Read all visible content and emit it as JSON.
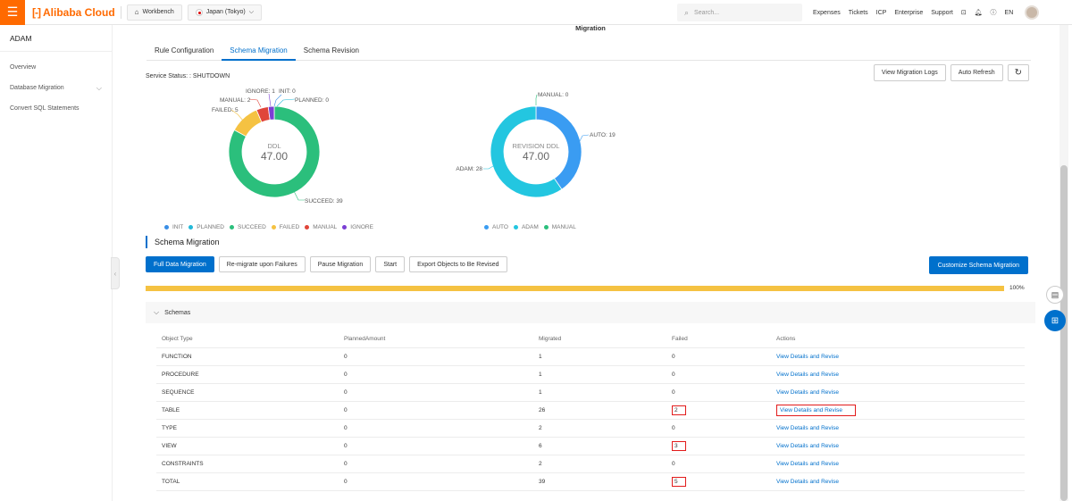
{
  "topbar": {
    "brand": "Alibaba Cloud",
    "workbench": "Workbench",
    "region": "Japan (Tokyo)",
    "search_placeholder": "Search...",
    "links": [
      "Expenses",
      "Tickets",
      "ICP",
      "Enterprise",
      "Support"
    ],
    "lang": "EN"
  },
  "sidebar": {
    "title": "ADAM",
    "items": [
      "Overview",
      "Database Migration",
      "Convert SQL Statements"
    ]
  },
  "page": {
    "title": "Migration",
    "tabs": [
      "Rule Configuration",
      "Schema Migration",
      "Schema Revision"
    ],
    "active_tab": 1,
    "service_status": "Service Status: : SHUTDOWN",
    "view_logs": "View Migration Logs",
    "auto_refresh": "Auto Refresh"
  },
  "chart_data": [
    {
      "type": "pie",
      "center_label": "DDL",
      "center_value": "47.00",
      "slices": [
        {
          "name": "SUCCEED",
          "value": 39,
          "label": "SUCCEED: 39",
          "color": "#2bbf7c"
        },
        {
          "name": "FAILED",
          "value": 5,
          "label": "FAILED: 5",
          "color": "#f5c242"
        },
        {
          "name": "MANUAL",
          "value": 2,
          "label": "MANUAL: 2",
          "color": "#e0453a"
        },
        {
          "name": "IGNORE",
          "value": 1,
          "label": "IGNORE: 1",
          "color": "#7b3fd4"
        },
        {
          "name": "INIT",
          "value": 0,
          "label": "INIT: 0",
          "color": "#3a8ee6"
        },
        {
          "name": "PLANNED",
          "value": 0,
          "label": "PLANNED: 0",
          "color": "#23b9d8"
        }
      ],
      "legend": [
        {
          "name": "INIT",
          "color": "#3a8ee6"
        },
        {
          "name": "PLANNED",
          "color": "#23b9d8"
        },
        {
          "name": "SUCCEED",
          "color": "#2bbf7c"
        },
        {
          "name": "FAILED",
          "color": "#f5c242"
        },
        {
          "name": "MANUAL",
          "color": "#e0453a"
        },
        {
          "name": "IGNORE",
          "color": "#7b3fd4"
        }
      ]
    },
    {
      "type": "pie",
      "center_label": "REVISION DDL",
      "center_value": "47.00",
      "slices": [
        {
          "name": "AUTO",
          "value": 19,
          "label": "AUTO: 19",
          "color": "#3a9cf2"
        },
        {
          "name": "ADAM",
          "value": 28,
          "label": "ADAM: 28",
          "color": "#23c6e0"
        },
        {
          "name": "MANUAL",
          "value": 0,
          "label": "MANUAL: 0",
          "color": "#2bbf7c"
        }
      ],
      "legend": [
        {
          "name": "AUTO",
          "color": "#3a9cf2"
        },
        {
          "name": "ADAM",
          "color": "#23c6e0"
        },
        {
          "name": "MANUAL",
          "color": "#2bbf7c"
        }
      ]
    }
  ],
  "schema_section": {
    "title": "Schema Migration",
    "buttons": [
      "Full Data Migration",
      "Re-migrate upon Failures",
      "Pause Migration",
      "Start",
      "Export Objects to Be Revised"
    ],
    "customize": "Customize Schema Migration",
    "progress_percent": 100,
    "progress_label": "100%",
    "schemas_label": "Schemas"
  },
  "table": {
    "headers": [
      "Object Type",
      "PlannedAmount",
      "Migrated",
      "Failed",
      "Actions"
    ],
    "rows": [
      {
        "type": "FUNCTION",
        "planned": "0",
        "migrated": "1",
        "failed": "0",
        "action": "View Details and Revise"
      },
      {
        "type": "PROCEDURE",
        "planned": "0",
        "migrated": "1",
        "failed": "0",
        "action": "View Details and Revise"
      },
      {
        "type": "SEQUENCE",
        "planned": "0",
        "migrated": "1",
        "failed": "0",
        "action": "View Details and Revise"
      },
      {
        "type": "TABLE",
        "planned": "0",
        "migrated": "26",
        "failed": "2",
        "action": "View Details and Revise"
      },
      {
        "type": "TYPE",
        "planned": "0",
        "migrated": "2",
        "failed": "0",
        "action": "View Details and Revise"
      },
      {
        "type": "VIEW",
        "planned": "0",
        "migrated": "6",
        "failed": "3",
        "action": "View Details and Revise"
      },
      {
        "type": "CONSTRAINTS",
        "planned": "0",
        "migrated": "2",
        "failed": "0",
        "action": "View Details and Revise"
      },
      {
        "type": "TOTAL",
        "planned": "0",
        "migrated": "39",
        "failed": "5",
        "action": "View Details and Revise"
      }
    ]
  }
}
